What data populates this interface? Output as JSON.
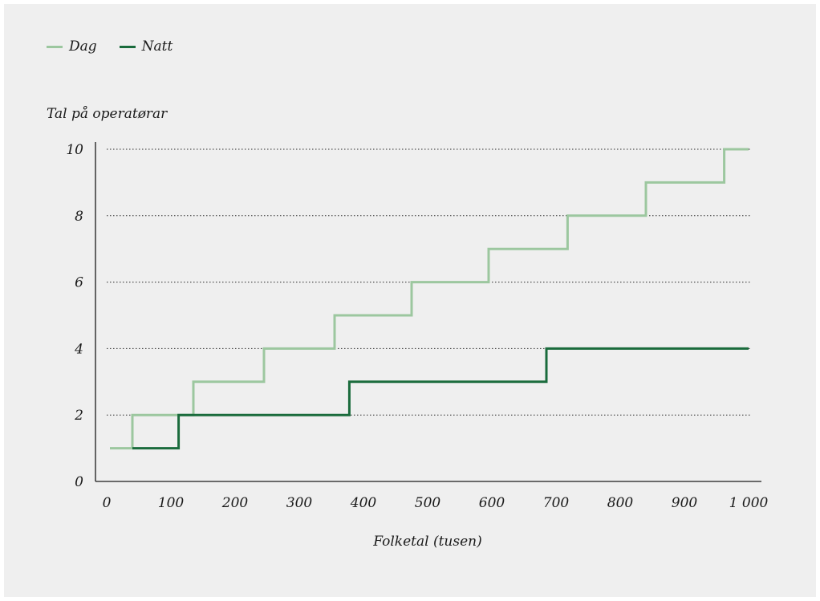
{
  "chart_data": {
    "type": "line",
    "step": true,
    "ylabel": "Tal på operatørar",
    "xlabel": "Folketal (tusen)",
    "xlim": [
      0,
      1000
    ],
    "ylim": [
      0,
      10
    ],
    "x_ticks": [
      "0",
      "100",
      "200",
      "300",
      "400",
      "500",
      "600",
      "700",
      "800",
      "900",
      "1 000"
    ],
    "y_ticks": [
      "0",
      "2",
      "4",
      "6",
      "8",
      "10"
    ],
    "grid": "dotted horizontal",
    "legend_position": "top-left",
    "series": [
      {
        "name": "Dag",
        "color": "#9cc79f",
        "x": [
          5,
          40,
          40,
          135,
          135,
          245,
          245,
          355,
          355,
          475,
          475,
          595,
          595,
          718,
          718,
          840,
          840,
          962,
          962,
          1000
        ],
        "y": [
          1,
          1,
          2,
          2,
          3,
          3,
          4,
          4,
          5,
          5,
          6,
          6,
          7,
          7,
          8,
          8,
          9,
          9,
          10,
          10
        ]
      },
      {
        "name": "Natt",
        "color": "#1a6b3c",
        "x": [
          40,
          112,
          112,
          378,
          378,
          685,
          685,
          1000
        ],
        "y": [
          1,
          1,
          2,
          2,
          3,
          3,
          4,
          4
        ]
      }
    ]
  }
}
